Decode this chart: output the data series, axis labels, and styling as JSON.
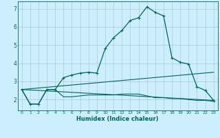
{
  "xlabel": "Humidex (Indice chaleur)",
  "background_color": "#cceeff",
  "grid_color": "#aacccc",
  "line_color": "#006655",
  "xlim": [
    -0.5,
    23.5
  ],
  "ylim": [
    1.4,
    7.4
  ],
  "yticks": [
    2,
    3,
    4,
    5,
    6,
    7
  ],
  "xticks": [
    0,
    1,
    2,
    3,
    4,
    5,
    6,
    7,
    8,
    9,
    10,
    11,
    12,
    13,
    14,
    15,
    16,
    17,
    18,
    19,
    20,
    21,
    22,
    23
  ],
  "series1_x": [
    0,
    1,
    2,
    3,
    4,
    5,
    6,
    7,
    8,
    9,
    10,
    11,
    12,
    13,
    14,
    15,
    16,
    17,
    18,
    19,
    20,
    21,
    22,
    23
  ],
  "series1_y": [
    2.55,
    1.75,
    1.75,
    2.55,
    2.55,
    3.2,
    3.35,
    3.45,
    3.5,
    3.45,
    4.8,
    5.4,
    5.8,
    6.35,
    6.5,
    7.1,
    6.8,
    6.6,
    4.3,
    4.05,
    3.95,
    2.7,
    2.5,
    1.95
  ],
  "series2_x": [
    0,
    23
  ],
  "series2_y": [
    2.55,
    1.95
  ],
  "series3_x": [
    0,
    23
  ],
  "series3_y": [
    2.55,
    3.5
  ],
  "series4_x": [
    0,
    1,
    2,
    3,
    4,
    5,
    6,
    7,
    8,
    9,
    10,
    11,
    12,
    13,
    14,
    15,
    16,
    17,
    18,
    19,
    20,
    21,
    22,
    23
  ],
  "series4_y": [
    2.55,
    1.75,
    1.75,
    2.55,
    2.55,
    2.15,
    2.15,
    2.2,
    2.25,
    2.25,
    2.25,
    2.25,
    2.3,
    2.3,
    2.3,
    2.2,
    2.1,
    2.1,
    2.05,
    2.05,
    2.0,
    1.95,
    1.95,
    1.9
  ]
}
